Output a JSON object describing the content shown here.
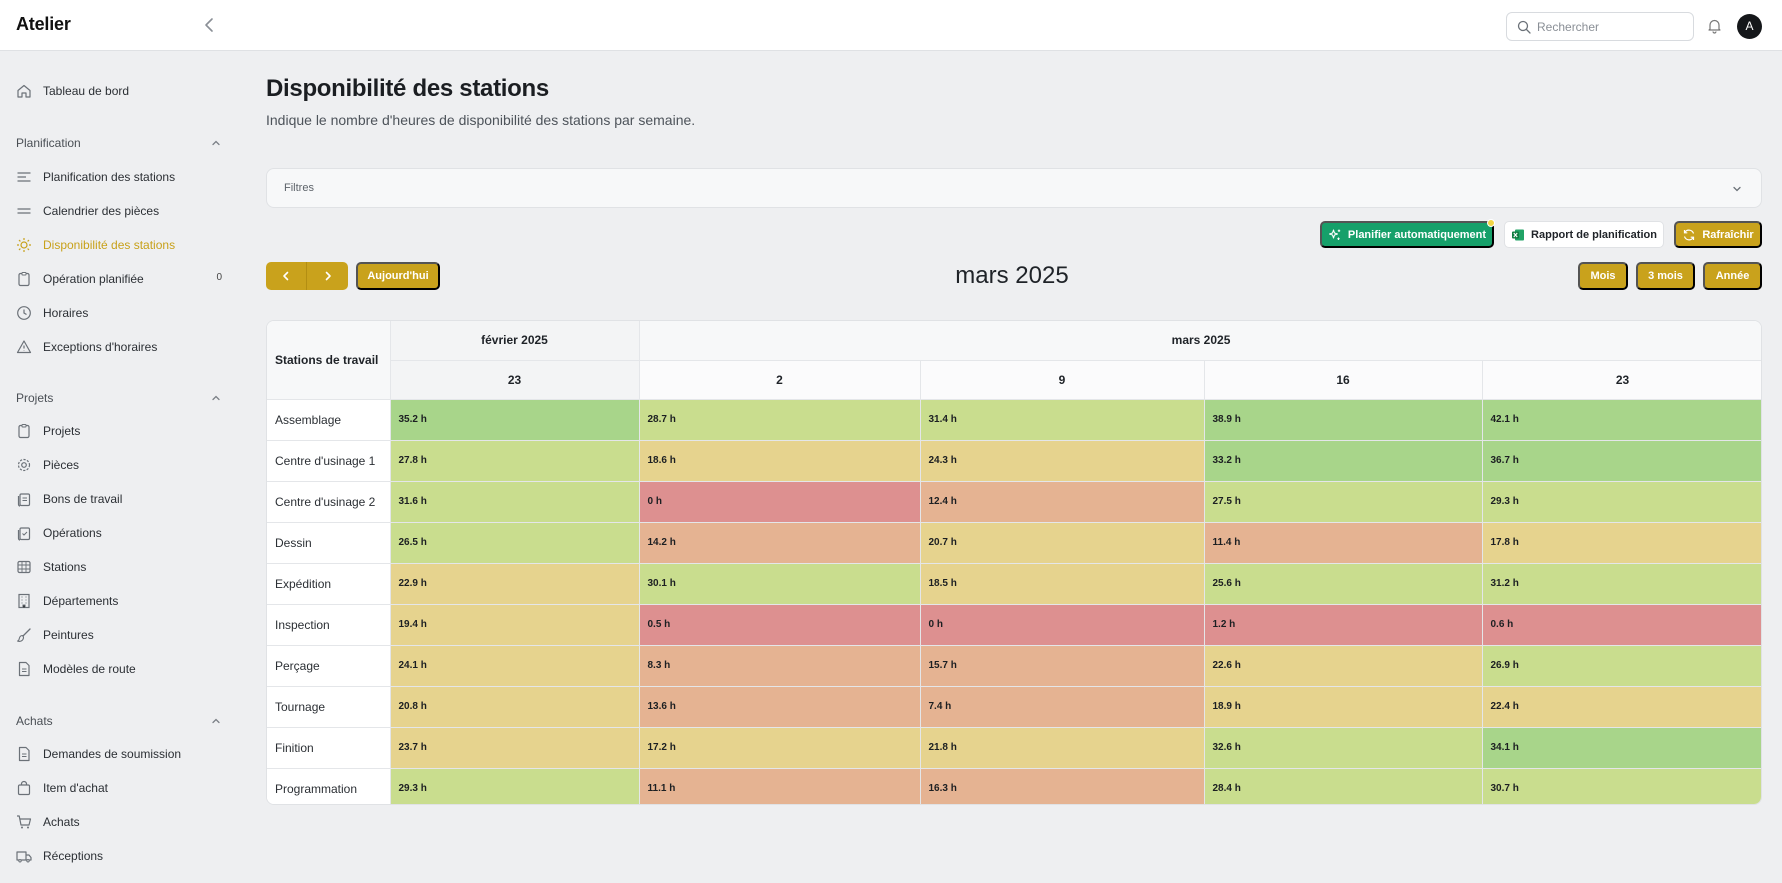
{
  "app": {
    "title": "Atelier"
  },
  "header": {
    "search_placeholder": "Rechercher",
    "avatar_initial": "A"
  },
  "sidebar": {
    "dashboard": "Tableau de bord",
    "sections": [
      {
        "title": "Planification",
        "items": [
          {
            "label": "Planification des stations",
            "icon": "lines-icon"
          },
          {
            "label": "Calendrier des pièces",
            "icon": "equals-icon"
          },
          {
            "label": "Disponibilité des stations",
            "icon": "sun-icon",
            "active": true
          },
          {
            "label": "Opération planifiée",
            "icon": "clipboard-icon",
            "badge": "0"
          },
          {
            "label": "Horaires",
            "icon": "clock-icon"
          },
          {
            "label": "Exceptions d'horaires",
            "icon": "warning-icon"
          }
        ]
      },
      {
        "title": "Projets",
        "items": [
          {
            "label": "Projets",
            "icon": "clipboard-icon"
          },
          {
            "label": "Pièces",
            "icon": "gear-icon"
          },
          {
            "label": "Bons de travail",
            "icon": "clipboard-stack-icon"
          },
          {
            "label": "Opérations",
            "icon": "clipboard-stack-icon"
          },
          {
            "label": "Stations",
            "icon": "station-icon"
          },
          {
            "label": "Départements",
            "icon": "building-icon"
          },
          {
            "label": "Peintures",
            "icon": "brush-icon"
          },
          {
            "label": "Modèles de route",
            "icon": "document-icon"
          }
        ]
      },
      {
        "title": "Achats",
        "items": [
          {
            "label": "Demandes de soumission",
            "icon": "document-icon"
          },
          {
            "label": "Item d'achat",
            "icon": "bag-icon"
          },
          {
            "label": "Achats",
            "icon": "cart-icon"
          },
          {
            "label": "Réceptions",
            "icon": "truck-icon"
          }
        ]
      }
    ]
  },
  "page": {
    "title": "Disponibilité des stations",
    "subtitle": "Indique le nombre d'heures de disponibilité des stations par semaine.",
    "filters_label": "Filtres"
  },
  "actions": {
    "auto_plan": "Planifier automatiquement",
    "report": "Rapport de planification",
    "refresh": "Rafraîchir",
    "today": "Aujourd'hui",
    "month_title": "mars 2025",
    "views": [
      "Mois",
      "3 mois",
      "Année"
    ]
  },
  "colors": {
    "accent_gold": "#c9a21c",
    "auto_plan_green": "#16a06a",
    "cell_scale": [
      "#dd9090",
      "#e5b392",
      "#e6d38e",
      "#c9dd8e",
      "#a8d58a"
    ]
  },
  "table": {
    "station_header": "Stations de travail",
    "months": [
      {
        "label": "février 2025",
        "span": 1
      },
      {
        "label": "mars 2025",
        "span": 4
      }
    ],
    "weeks": [
      "23",
      "2",
      "9",
      "16",
      "23"
    ],
    "rows": [
      {
        "station": "Assemblage",
        "values": [
          35.2,
          28.7,
          31.4,
          38.9,
          42.1
        ]
      },
      {
        "station": "Centre d'usinage 1",
        "values": [
          27.8,
          18.6,
          24.3,
          33.2,
          36.7
        ]
      },
      {
        "station": "Centre d'usinage 2",
        "values": [
          31.6,
          0,
          12.4,
          27.5,
          29.3
        ]
      },
      {
        "station": "Dessin",
        "values": [
          26.5,
          14.2,
          20.7,
          11.4,
          17.8
        ]
      },
      {
        "station": "Expédition",
        "values": [
          22.9,
          30.1,
          18.5,
          25.6,
          31.2
        ]
      },
      {
        "station": "Inspection",
        "values": [
          19.4,
          0.5,
          0,
          1.2,
          0.6
        ]
      },
      {
        "station": "Perçage",
        "values": [
          24.1,
          8.3,
          15.7,
          22.6,
          26.9
        ]
      },
      {
        "station": "Tournage",
        "values": [
          20.8,
          13.6,
          7.4,
          18.9,
          22.4
        ]
      },
      {
        "station": "Finition",
        "values": [
          23.7,
          17.2,
          21.8,
          32.6,
          34.1
        ]
      },
      {
        "station": "Programmation",
        "values": [
          29.3,
          11.1,
          16.3,
          28.4,
          30.7
        ]
      }
    ]
  }
}
